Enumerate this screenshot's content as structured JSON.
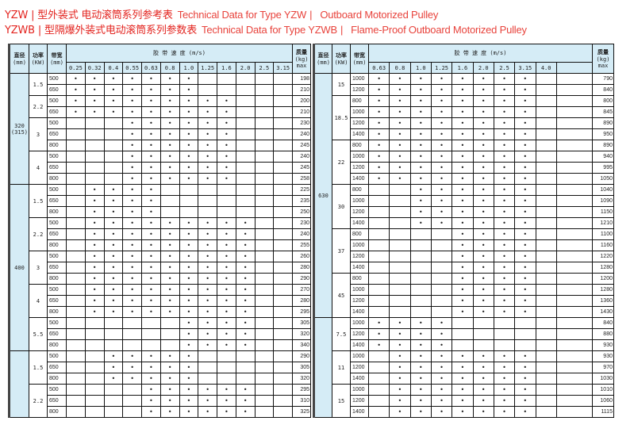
{
  "titles": [
    {
      "model": "YZW",
      "sep": "|",
      "cn": "型外装式 电动滚筒系列参考表",
      "en": "Technical Data for Type YZW",
      "sep2": "|",
      "en2": "Outboard Motorized Pulley"
    },
    {
      "model": "YZWB",
      "sep": "|",
      "cn": "型隔爆外装式电动滚筒系列参数表",
      "en": "Technical Data for Type YZWB",
      "sep2": "|",
      "en2": "Flame-Proof Outboard Motorized Pulley"
    }
  ],
  "colors": {
    "title": "#e3241f",
    "header_bg": "#d5ecf6",
    "border": "#111111"
  },
  "header": {
    "diameter": "直径",
    "diameter_unit": "(mm)",
    "power": "功率",
    "power_unit": "(KW)",
    "width": "带宽",
    "width_unit": "(mm)",
    "speed": "胶 带 速 度 (m/s)",
    "mass": "质量",
    "mass_unit": "(kg)",
    "mass_max": "max"
  },
  "mark": "•",
  "tables": [
    {
      "speeds": [
        "0.25",
        "0.32",
        "0.4",
        "0.55",
        "0.63",
        "0.8",
        "1.0",
        "1.25",
        "1.6",
        "2.0",
        "2.5",
        "3.15"
      ],
      "groups": [
        {
          "diameter": "320",
          "diameter_alt": "(315)",
          "powers": [
            {
              "power": "1.5",
              "available": [
                0,
                6
              ],
              "rows": [
                [
                  "500",
                  "198"
                ],
                [
                  "650",
                  "210"
                ]
              ]
            },
            {
              "power": "2.2",
              "available": [
                0,
                8
              ],
              "rows": [
                [
                  "500",
                  "200"
                ],
                [
                  "650",
                  "210"
                ]
              ]
            },
            {
              "power": "3",
              "available": [
                3,
                8
              ],
              "rows": [
                [
                  "500",
                  "230"
                ],
                [
                  "650",
                  "240"
                ],
                [
                  "800",
                  "245"
                ]
              ]
            },
            {
              "power": "4",
              "available": [
                3,
                8
              ],
              "rows": [
                [
                  "500",
                  "240"
                ],
                [
                  "650",
                  "245"
                ],
                [
                  "800",
                  "258"
                ]
              ]
            }
          ]
        },
        {
          "diameter": "400",
          "diameter_alt": "",
          "powers": [
            {
              "power": "1.5",
              "available": [
                1,
                4
              ],
              "rows": [
                [
                  "500",
                  "225"
                ],
                [
                  "650",
                  "235"
                ],
                [
                  "800",
                  "250"
                ]
              ]
            },
            {
              "power": "2.2",
              "available": [
                1,
                9
              ],
              "rows": [
                [
                  "500",
                  "230"
                ],
                [
                  "650",
                  "240"
                ],
                [
                  "800",
                  "255"
                ]
              ]
            },
            {
              "power": "3",
              "available": [
                1,
                9
              ],
              "rows": [
                [
                  "500",
                  "260"
                ],
                [
                  "650",
                  "280"
                ],
                [
                  "800",
                  "290"
                ]
              ]
            },
            {
              "power": "4",
              "available": [
                1,
                9
              ],
              "rows": [
                [
                  "500",
                  "270"
                ],
                [
                  "650",
                  "280"
                ],
                [
                  "800",
                  "295"
                ]
              ]
            },
            {
              "power": "5.5",
              "available": [
                6,
                9
              ],
              "rows": [
                [
                  "500",
                  "305"
                ],
                [
                  "650",
                  "320"
                ],
                [
                  "800",
                  "340"
                ]
              ]
            }
          ]
        },
        {
          "diameter": "",
          "diameter_alt": "",
          "powers": [
            {
              "power": "1.5",
              "available": [
                2,
                6
              ],
              "rows": [
                [
                  "500",
                  "290"
                ],
                [
                  "650",
                  "305"
                ],
                [
                  "800",
                  "320"
                ]
              ]
            },
            {
              "power": "2.2",
              "available": [
                4,
                9
              ],
              "rows": [
                [
                  "500",
                  "295"
                ],
                [
                  "650",
                  "310"
                ],
                [
                  "800",
                  "325"
                ]
              ]
            }
          ]
        }
      ]
    },
    {
      "speeds": [
        "0.63",
        "0.8",
        "1.0",
        "1.25",
        "1.6",
        "2.0",
        "2.5",
        "3.15",
        "4.0",
        ""
      ],
      "groups": [
        {
          "diameter": "630",
          "diameter_alt": "",
          "powers": [
            {
              "power": "15",
              "available": [
                0,
                7
              ],
              "rows": [
                [
                  "1000",
                  "790"
                ],
                [
                  "1200",
                  "840"
                ]
              ]
            },
            {
              "power": "18.5",
              "available": [
                0,
                7
              ],
              "rows": [
                [
                  "800",
                  "800"
                ],
                [
                  "1000",
                  "845"
                ],
                [
                  "1200",
                  "890"
                ],
                [
                  "1400",
                  "950"
                ]
              ]
            },
            {
              "power": "22",
              "available": [
                0,
                7
              ],
              "rows": [
                [
                  "800",
                  "890"
                ],
                [
                  "1000",
                  "940"
                ],
                [
                  "1200",
                  "995"
                ],
                [
                  "1400",
                  "1050"
                ]
              ]
            },
            {
              "power": "30",
              "available": [
                2,
                7
              ],
              "rows": [
                [
                  "800",
                  "1040"
                ],
                [
                  "1000",
                  "1090"
                ],
                [
                  "1200",
                  "1150"
                ],
                [
                  "1400",
                  "1210"
                ]
              ]
            },
            {
              "power": "37",
              "available": [
                4,
                7
              ],
              "rows": [
                [
                  "800",
                  "1100"
                ],
                [
                  "1000",
                  "1160"
                ],
                [
                  "1200",
                  "1220"
                ],
                [
                  "1400",
                  "1280"
                ]
              ]
            },
            {
              "power": "45",
              "available": [
                4,
                7
              ],
              "rows": [
                [
                  "800",
                  "1200"
                ],
                [
                  "1000",
                  "1280"
                ],
                [
                  "1200",
                  "1360"
                ],
                [
                  "1400",
                  "1430"
                ]
              ]
            }
          ]
        },
        {
          "diameter": "",
          "diameter_alt": "",
          "powers": [
            {
              "power": "7.5",
              "available": [
                0,
                3
              ],
              "rows": [
                [
                  "1000",
                  "840"
                ],
                [
                  "1200",
                  "880"
                ],
                [
                  "1400",
                  "930"
                ]
              ]
            },
            {
              "power": "11",
              "available": [
                1,
                7
              ],
              "rows": [
                [
                  "1000",
                  "930"
                ],
                [
                  "1200",
                  "970"
                ],
                [
                  "1400",
                  "1030"
                ]
              ]
            },
            {
              "power": "15",
              "available": [
                1,
                7
              ],
              "rows": [
                [
                  "1000",
                  "1010"
                ],
                [
                  "1200",
                  "1060"
                ],
                [
                  "1400",
                  "1115"
                ]
              ]
            }
          ]
        }
      ]
    }
  ]
}
